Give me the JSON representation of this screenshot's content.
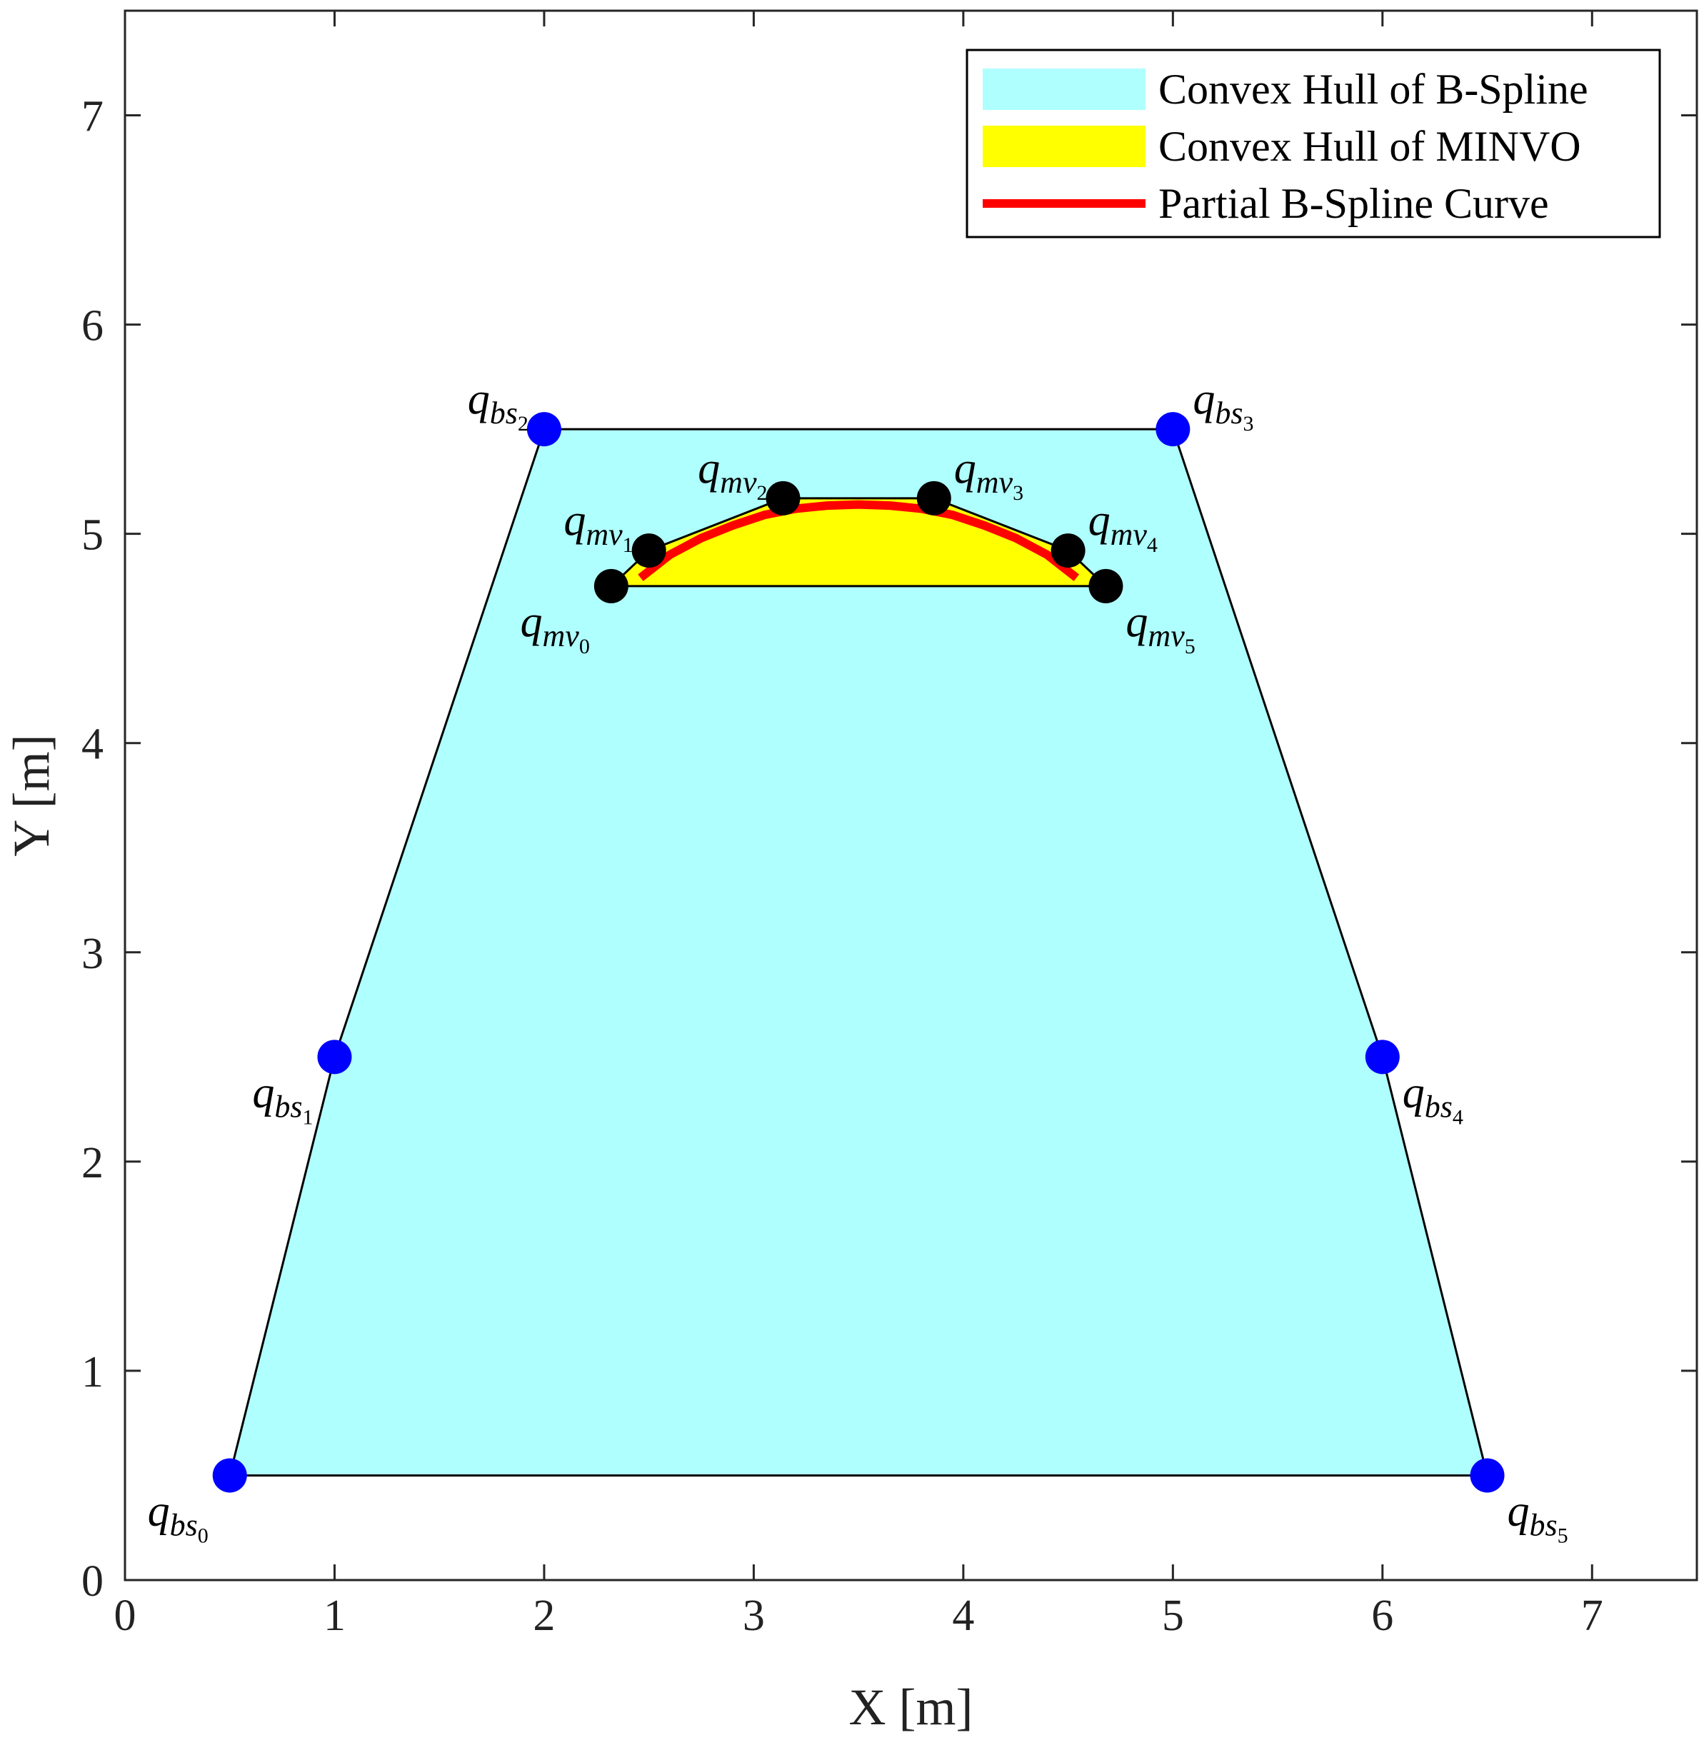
{
  "chart_data": {
    "type": "scatter",
    "xlabel": "X [m]",
    "ylabel": "Y [m]",
    "xlim": [
      0,
      7.5
    ],
    "ylim": [
      0,
      7.5
    ],
    "xticks": [
      0,
      1,
      2,
      3,
      4,
      5,
      6,
      7
    ],
    "yticks": [
      0,
      1,
      2,
      3,
      4,
      5,
      6,
      7
    ],
    "grid": false,
    "legend_position": "top-right",
    "legend": [
      {
        "label": "Convex Hull of B-Spline",
        "kind": "patch",
        "color": "#b0ffff"
      },
      {
        "label": "Convex Hull of MINVO",
        "kind": "patch",
        "color": "#ffff00"
      },
      {
        "label": "Partial B-Spline Curve",
        "kind": "line",
        "color": "#ff0000"
      }
    ],
    "colors": {
      "bspline_hull_fill": "#b0ffff",
      "minvo_hull_fill": "#ffff00",
      "curve": "#ff0000",
      "bspline_points": "#0000ff",
      "minvo_points": "#000000",
      "outline": "#000000"
    },
    "bspline_points": [
      {
        "name": "q",
        "sub": "bs",
        "idx": "0",
        "x": 0.5,
        "y": 0.5,
        "anchor": "bottom-left"
      },
      {
        "name": "q",
        "sub": "bs",
        "idx": "1",
        "x": 1.0,
        "y": 2.5,
        "anchor": "bottom-left"
      },
      {
        "name": "q",
        "sub": "bs",
        "idx": "2",
        "x": 2.0,
        "y": 5.5,
        "anchor": "top-left"
      },
      {
        "name": "q",
        "sub": "bs",
        "idx": "3",
        "x": 5.0,
        "y": 5.5,
        "anchor": "top-right"
      },
      {
        "name": "q",
        "sub": "bs",
        "idx": "4",
        "x": 6.0,
        "y": 2.5,
        "anchor": "bottom-right"
      },
      {
        "name": "q",
        "sub": "bs",
        "idx": "5",
        "x": 6.5,
        "y": 0.5,
        "anchor": "bottom-right"
      }
    ],
    "bspline_hull_order": [
      0,
      1,
      2,
      3,
      4,
      5
    ],
    "minvo_points": [
      {
        "name": "q",
        "sub": "mv",
        "idx": "0",
        "x": 2.32,
        "y": 4.75,
        "anchor": "bottom-left"
      },
      {
        "name": "q",
        "sub": "mv",
        "idx": "1",
        "x": 2.5,
        "y": 4.92,
        "anchor": "top-left"
      },
      {
        "name": "q",
        "sub": "mv",
        "idx": "2",
        "x": 3.14,
        "y": 5.17,
        "anchor": "top-left"
      },
      {
        "name": "q",
        "sub": "mv",
        "idx": "3",
        "x": 3.86,
        "y": 5.17,
        "anchor": "top-right"
      },
      {
        "name": "q",
        "sub": "mv",
        "idx": "4",
        "x": 4.5,
        "y": 4.92,
        "anchor": "top-right"
      },
      {
        "name": "q",
        "sub": "mv",
        "idx": "5",
        "x": 4.68,
        "y": 4.75,
        "anchor": "bottom-right"
      }
    ],
    "minvo_hull_order": [
      0,
      1,
      2,
      3,
      4,
      5
    ],
    "curve": {
      "name": "Partial B-Spline Curve",
      "x": [
        2.46,
        2.6,
        2.75,
        2.9,
        3.05,
        3.2,
        3.35,
        3.5,
        3.65,
        3.8,
        3.95,
        4.1,
        4.25,
        4.4,
        4.54
      ],
      "y": [
        4.79,
        4.9,
        4.98,
        5.04,
        5.09,
        5.12,
        5.135,
        5.14,
        5.135,
        5.12,
        5.09,
        5.04,
        4.98,
        4.9,
        4.79
      ]
    }
  }
}
